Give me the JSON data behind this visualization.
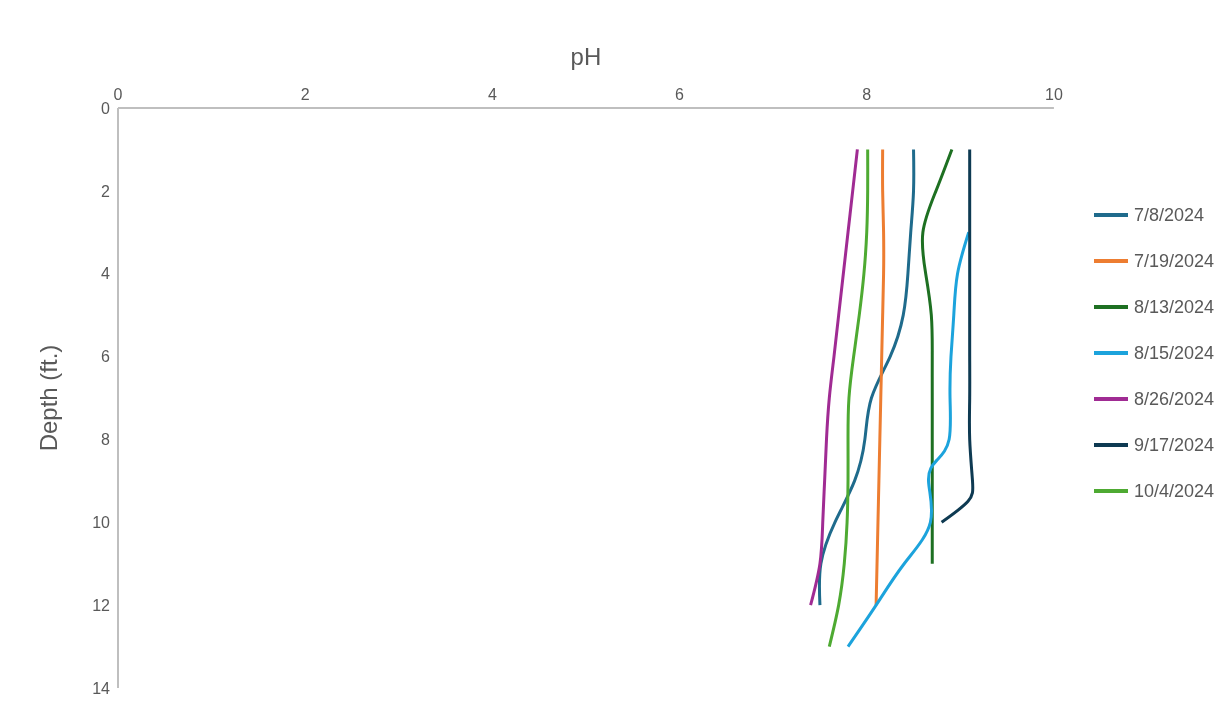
{
  "chart_data": {
    "type": "line",
    "xlabel": "pH",
    "ylabel": "Depth (ft.)",
    "xlim": [
      0,
      10
    ],
    "xticks": [
      0,
      2,
      4,
      6,
      8,
      10
    ],
    "ylim": [
      14,
      0
    ],
    "yticks": [
      0,
      2,
      4,
      6,
      8,
      10,
      12,
      14
    ],
    "grid": false,
    "legend": "right",
    "marker": "none",
    "line_style": "solid",
    "series": [
      {
        "name": "7/8/2024",
        "color": "#1f6b8c",
        "x": [
          8.5,
          8.5,
          8.47,
          8.44,
          8.39,
          8.25,
          8.05,
          7.98,
          7.87,
          7.66,
          7.51,
          7.5
        ],
        "values": [
          1,
          2,
          3,
          4,
          5,
          6,
          7,
          8,
          9,
          10,
          11,
          12
        ]
      },
      {
        "name": "7/19/2024",
        "color": "#ed7d31",
        "x": [
          8.17,
          8.17,
          8.18,
          8.18,
          8.17,
          8.16,
          8.15,
          8.14,
          8.13,
          8.12,
          8.11,
          8.1
        ],
        "values": [
          1,
          2,
          3,
          4,
          5,
          6,
          7,
          8,
          9,
          10,
          11,
          12
        ]
      },
      {
        "name": "8/13/2024",
        "color": "#1e7022",
        "x": [
          8.91,
          8.74,
          8.6,
          8.63,
          8.69,
          8.7,
          8.7,
          8.7,
          8.7,
          8.7,
          8.7
        ],
        "values": [
          1,
          2,
          3,
          4,
          5,
          6,
          7,
          8,
          9,
          10,
          11
        ]
      },
      {
        "name": "8/15/2024",
        "color": "#1ca3dc",
        "x": [
          9.09,
          8.97,
          8.93,
          8.9,
          8.89,
          8.88,
          8.75,
          8.66,
          8.68,
          8.4,
          8.1,
          7.8
        ],
        "values": [
          3,
          4,
          5,
          6,
          7,
          8,
          8.5,
          9,
          10,
          11,
          12,
          13
        ]
      },
      {
        "name": "8/26/2024",
        "color": "#a02b93",
        "x": [
          7.9,
          7.85,
          7.8,
          7.75,
          7.7,
          7.65,
          7.6,
          7.57,
          7.55,
          7.53,
          7.5,
          7.4
        ],
        "values": [
          1,
          2,
          3,
          4,
          5,
          6,
          7,
          8,
          9,
          10,
          11,
          12
        ]
      },
      {
        "name": "9/17/2024",
        "color": "#0e3a52",
        "x": [
          9.1,
          9.1,
          9.1,
          9.1,
          9.1,
          9.1,
          9.1,
          9.1,
          9.13,
          9.08,
          8.8
        ],
        "values": [
          1,
          2,
          3,
          4,
          5,
          6,
          7,
          8,
          9,
          9.5,
          10
        ]
      },
      {
        "name": "10/4/2024",
        "color": "#4eaa32",
        "x": [
          8.01,
          8.01,
          8.0,
          7.97,
          7.92,
          7.86,
          7.81,
          7.8,
          7.8,
          7.79,
          7.76,
          7.7,
          7.6
        ],
        "values": [
          1,
          2,
          3,
          4,
          5,
          6,
          7,
          8,
          9,
          10,
          11,
          12,
          13
        ]
      }
    ]
  }
}
